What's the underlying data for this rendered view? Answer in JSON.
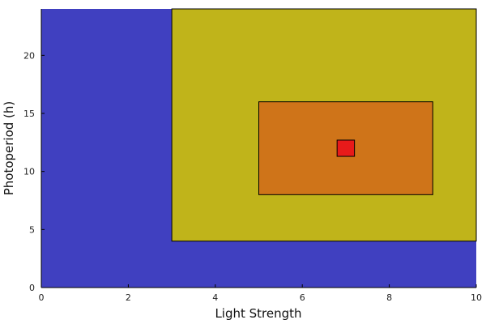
{
  "chart_data": {
    "type": "area",
    "xlabel": "Light Strength",
    "ylabel": "Photoperiod (h)",
    "xlim": [
      0,
      10
    ],
    "ylim": [
      0,
      24
    ],
    "xticks": [
      "0",
      "2",
      "4",
      "6",
      "8",
      "10"
    ],
    "yticks": [
      "0",
      "5",
      "10",
      "15",
      "20"
    ],
    "grid": false,
    "regions": [
      {
        "x0": 0,
        "x1": 10,
        "y0": 0,
        "y1": 24,
        "color": "#4040c0"
      },
      {
        "x0": 3,
        "x1": 10,
        "y0": 4,
        "y1": 24,
        "color": "#c0b41a"
      },
      {
        "x0": 5,
        "x1": 9,
        "y0": 8,
        "y1": 16,
        "color": "#cf7419"
      },
      {
        "x0": 6.8,
        "x1": 7.2,
        "y0": 11.3,
        "y1": 12.7,
        "color": "#e81a1a"
      }
    ]
  }
}
